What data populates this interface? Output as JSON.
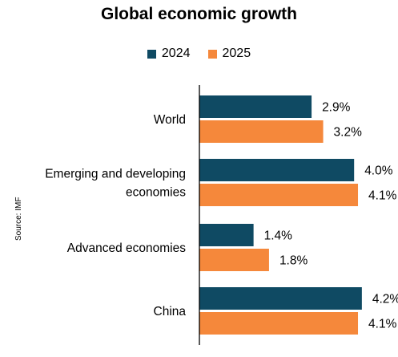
{
  "chart_data": {
    "type": "bar",
    "orientation": "horizontal",
    "title": "Global economic growth",
    "source_note": "Source: IMF",
    "categories": [
      [
        "World"
      ],
      [
        "Emerging and developing",
        "economies"
      ],
      [
        "Advanced economies"
      ],
      [
        "China"
      ]
    ],
    "series": [
      {
        "name": "2024",
        "color": "#0f4a63",
        "values": [
          2.9,
          4.0,
          1.4,
          4.2
        ],
        "labels": [
          "2.9%",
          "4.0%",
          "1.4%",
          "4.2%"
        ]
      },
      {
        "name": "2025",
        "color": "#f5883b",
        "values": [
          3.2,
          4.1,
          1.8,
          4.1
        ],
        "labels": [
          "3.2%",
          "4.1%",
          "1.8%",
          "4.1%"
        ]
      }
    ],
    "xlim": [
      0,
      5.1
    ],
    "grid": false,
    "legend_position": "top-center"
  }
}
